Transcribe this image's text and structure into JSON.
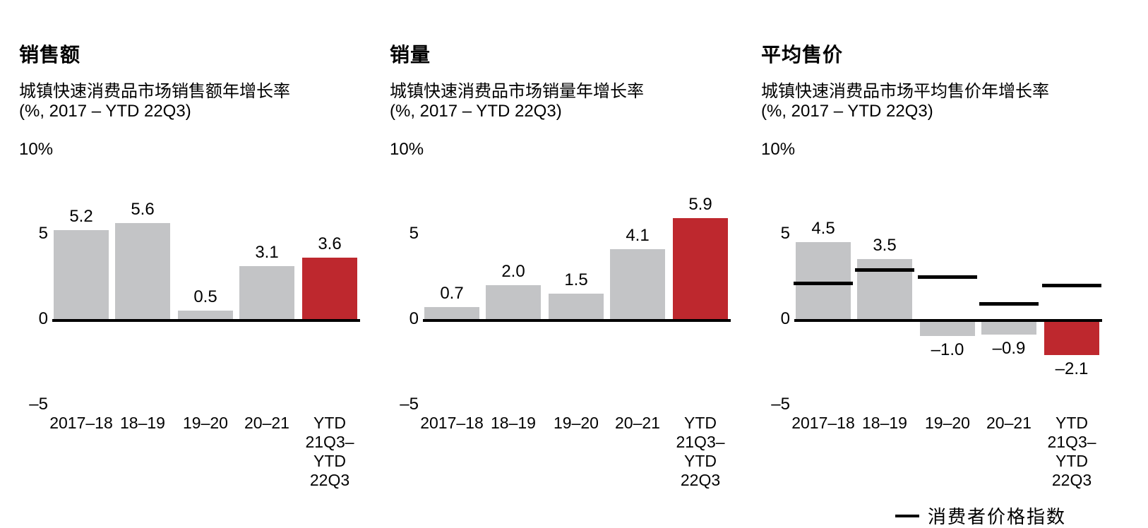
{
  "colors": {
    "bar_default": "#C3C4C6",
    "bar_highlight": "#BE282E",
    "axis": "#000000",
    "text": "#000000",
    "background": "#FFFFFF"
  },
  "legend": {
    "marker": "line",
    "label": "消费者价格指数"
  },
  "chart_data": [
    {
      "type": "bar",
      "title": "销售额",
      "subtitle_lines": [
        "城镇快速消费品市场销售额年增长率",
        "(%, 2017 – YTD 22Q3)"
      ],
      "subtitle": "城镇快速消费品市场销售额年增长率 (%, 2017 – YTD 22Q3)",
      "xlabel": "",
      "ylabel": "%",
      "ylim": [
        -5,
        10
      ],
      "grid": false,
      "ytick_labels": [
        "10%",
        "5",
        "0",
        "–5"
      ],
      "ytick_values": [
        10,
        5,
        0,
        -5
      ],
      "categories": [
        "2017–18",
        "18–19",
        "19–20",
        "20–21",
        "YTD 21Q3–YTD 22Q3"
      ],
      "category_display_lines": [
        [
          "2017–18"
        ],
        [
          "18–19"
        ],
        [
          "19–20"
        ],
        [
          "20–21"
        ],
        [
          "YTD",
          "21Q3–",
          "YTD",
          "22Q3"
        ]
      ],
      "values": [
        5.2,
        5.6,
        0.5,
        3.1,
        3.6
      ],
      "value_labels": [
        "5.2",
        "5.6",
        "0.5",
        "3.1",
        "3.6"
      ],
      "highlight_last_bar": true
    },
    {
      "type": "bar",
      "title": "销量",
      "subtitle_lines": [
        "城镇快速消费品市场销量年增长率",
        "(%, 2017 – YTD 22Q3)"
      ],
      "subtitle": "城镇快速消费品市场销量年增长率 (%, 2017 – YTD 22Q3)",
      "xlabel": "",
      "ylabel": "%",
      "ylim": [
        -5,
        10
      ],
      "grid": false,
      "ytick_labels": [
        "10%",
        "5",
        "0",
        "–5"
      ],
      "ytick_values": [
        10,
        5,
        0,
        -5
      ],
      "categories": [
        "2017–18",
        "18–19",
        "19–20",
        "20–21",
        "YTD 21Q3–YTD 22Q3"
      ],
      "category_display_lines": [
        [
          "2017–18"
        ],
        [
          "18–19"
        ],
        [
          "19–20"
        ],
        [
          "20–21"
        ],
        [
          "YTD",
          "21Q3–",
          "YTD",
          "22Q3"
        ]
      ],
      "values": [
        0.7,
        2.0,
        1.5,
        4.1,
        5.9
      ],
      "value_labels": [
        "0.7",
        "2.0",
        "1.5",
        "4.1",
        "5.9"
      ],
      "highlight_last_bar": true
    },
    {
      "type": "bar",
      "title": "平均售价",
      "subtitle_lines": [
        "城镇快速消费品市场平均售价年增长率",
        "(%, 2017 – YTD 22Q3)"
      ],
      "subtitle": "城镇快速消费品市场平均售价年增长率 (%, 2017 – YTD 22Q3)",
      "xlabel": "",
      "ylabel": "%",
      "ylim": [
        -5,
        10
      ],
      "grid": false,
      "ytick_labels": [
        "10%",
        "5",
        "0",
        "–5"
      ],
      "ytick_values": [
        10,
        5,
        0,
        -5
      ],
      "categories": [
        "2017–18",
        "18–19",
        "19–20",
        "20–21",
        "YTD 21Q3–YTD 22Q3"
      ],
      "category_display_lines": [
        [
          "2017–18"
        ],
        [
          "18–19"
        ],
        [
          "19–20"
        ],
        [
          "20–21"
        ],
        [
          "YTD",
          "21Q3–",
          "YTD",
          "22Q3"
        ]
      ],
      "values": [
        4.5,
        3.5,
        -1.0,
        -0.9,
        -2.1
      ],
      "value_labels": [
        "4.5",
        "3.5",
        "–1.0",
        "–0.9",
        "–2.1"
      ],
      "highlight_last_bar": true,
      "overlay_series": {
        "name": "消费者价格指数",
        "type": "line-segments",
        "values": [
          2.1,
          2.9,
          2.5,
          0.9,
          2.0
        ]
      }
    }
  ]
}
